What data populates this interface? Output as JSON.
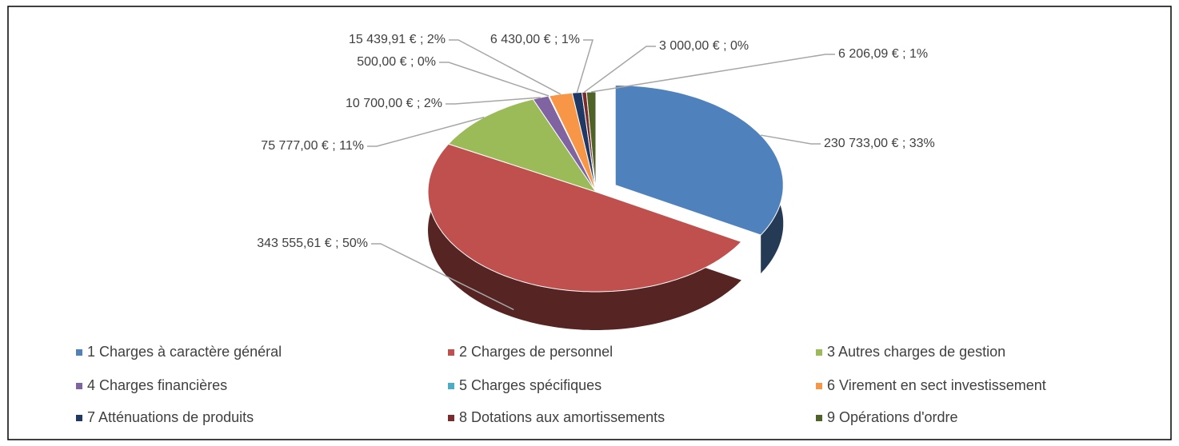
{
  "chart_data": {
    "type": "pie",
    "categories": [
      "1 Charges à caractère général",
      "2 Charges de personnel",
      "3 Autres charges de gestion",
      "4 Charges financières",
      "5 Charges spécifiques",
      "6 Virement en sect investissement",
      "7 Atténuations de produits",
      "8 Dotations aux amortissements",
      "9 Opérations d'ordre"
    ],
    "values": [
      230733.0,
      343555.61,
      75777.0,
      10700.0,
      500.0,
      15439.91,
      6430.0,
      3000.0,
      6206.09
    ],
    "value_labels": [
      "230 733,00 € ; 33%",
      "343 555,61 € ; 50%",
      "75 777,00 € ; 11%",
      "10 700,00 € ; 2%",
      "500,00 € ; 0%",
      "15 439,91 € ; 2%",
      "6 430,00 € ; 1%",
      "3 000,00 € ; 0%",
      "6 206,09 € ; 1%"
    ],
    "colors": [
      "#4f81bd",
      "#c0504d",
      "#9bbb59",
      "#8064a2",
      "#4bacc6",
      "#f79646",
      "#1f3864",
      "#7b2c2a",
      "#4f6228"
    ],
    "legend": "bottom"
  }
}
